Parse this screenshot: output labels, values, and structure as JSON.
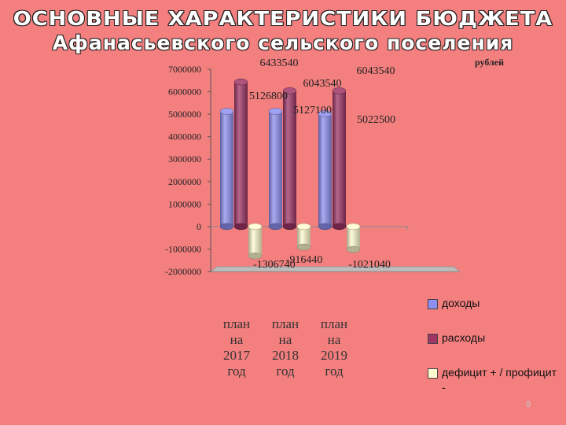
{
  "slide": {
    "title_line1": "ОСНОВНЫЕ ХАРАКТЕРИСТИКИ БЮДЖЕТА",
    "title_line2": "Афанасьевского сельского поселения",
    "page_number": "9"
  },
  "chart_data": {
    "type": "bar",
    "unit_label": "рублей",
    "categories": [
      [
        "план",
        "на",
        "2017",
        "год"
      ],
      [
        "план",
        "на",
        "2018",
        "год"
      ],
      [
        "план",
        "на",
        "2019",
        "год"
      ]
    ],
    "series": [
      {
        "name": "доходы",
        "color": "#8f8ff0",
        "values": [
          5126800,
          5127100,
          5022500
        ]
      },
      {
        "name": "расходы",
        "color": "#9e3566",
        "values": [
          6433540,
          6043540,
          6043540
        ]
      },
      {
        "name": "дефицит + / профицит -",
        "color": "#fffccf",
        "values": [
          -1306740,
          -916440,
          -1021040
        ]
      }
    ],
    "value_labels": [
      "6433540",
      "5126800",
      "6043540",
      "5127100",
      "6043540",
      "5022500",
      "-1306740",
      "-916440",
      "-1021040"
    ],
    "ylim": [
      -2000000,
      7000000
    ],
    "yticks": [
      7000000,
      6000000,
      5000000,
      4000000,
      3000000,
      2000000,
      1000000,
      0,
      -1000000,
      -2000000
    ],
    "grid": false,
    "legend_position": "bottom-right"
  }
}
